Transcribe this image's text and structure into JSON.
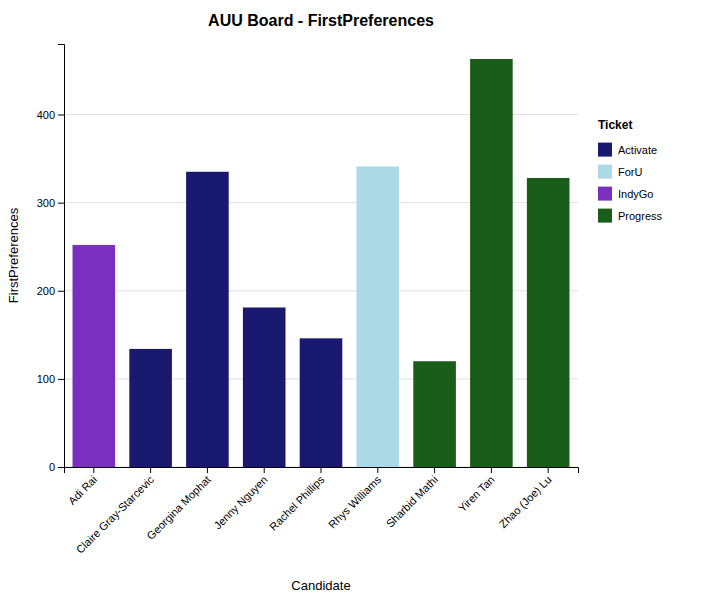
{
  "chart_data": {
    "type": "bar",
    "title": "AUU Board - FirstPreferences",
    "x_label": "Candidate",
    "y_label": "FirstPreferences",
    "categories": [
      "Adi Rai",
      "Claire Gray-Starcevic",
      "Georgina Mophat",
      "Jenny Nguyen",
      "Rachel Phillips",
      "Rhys Williams",
      "Sharbid Mathi",
      "Yiren Tan",
      "Zhao (Joe) Lu"
    ],
    "series": [
      {
        "name": "Activate",
        "color": "#191970",
        "values": [
          null,
          134,
          335,
          181,
          146,
          null,
          null,
          null,
          null
        ]
      },
      {
        "name": "ForU",
        "color": "#ADD8E6",
        "values": [
          null,
          null,
          null,
          null,
          null,
          341,
          null,
          null,
          null
        ]
      },
      {
        "name": "IndyGo",
        "color": "#7B2FBE",
        "values": [
          252,
          null,
          null,
          null,
          null,
          null,
          null,
          null,
          null
        ]
      },
      {
        "name": "Progress",
        "color": "#1A5C1A",
        "values": [
          null,
          null,
          null,
          null,
          null,
          null,
          120,
          463,
          328
        ]
      }
    ],
    "stacked": true,
    "legend_title": "Ticket",
    "legend": "right",
    "ylim": [
      0,
      480
    ],
    "yticks": [
      0,
      100,
      200,
      300,
      400
    ],
    "grid": true
  }
}
